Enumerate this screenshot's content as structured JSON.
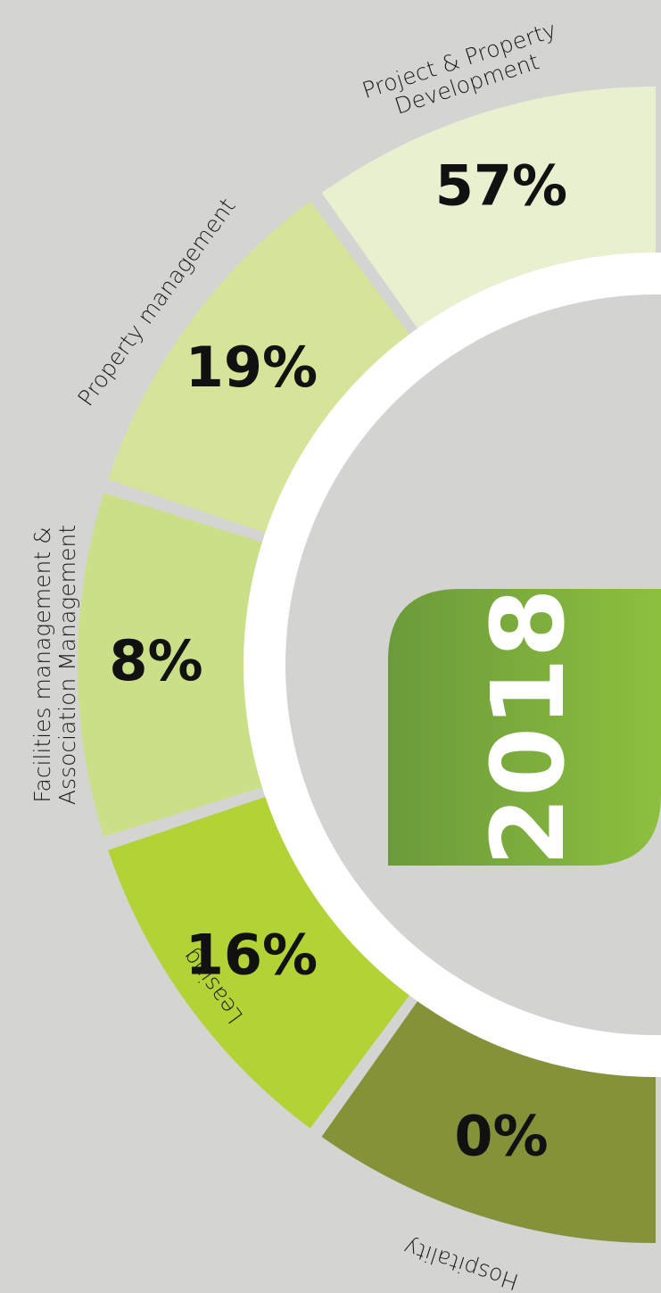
{
  "center_label": "2018",
  "segments": [
    {
      "label": [
        "Project & Property",
        "Development"
      ],
      "value": "57%",
      "color": "#e8f0d0"
    },
    {
      "label": [
        "Property management"
      ],
      "value": "19%",
      "color": "#d6e49a"
    },
    {
      "label": [
        "Facilities management &",
        "Association Management"
      ],
      "value": "8%",
      "color": "#cbdf88"
    },
    {
      "label": [
        "Leasing"
      ],
      "value": "16%",
      "color": "#b2d235"
    },
    {
      "label": [
        "Hospitality"
      ],
      "value": "0%",
      "color": "#85923a"
    }
  ]
}
